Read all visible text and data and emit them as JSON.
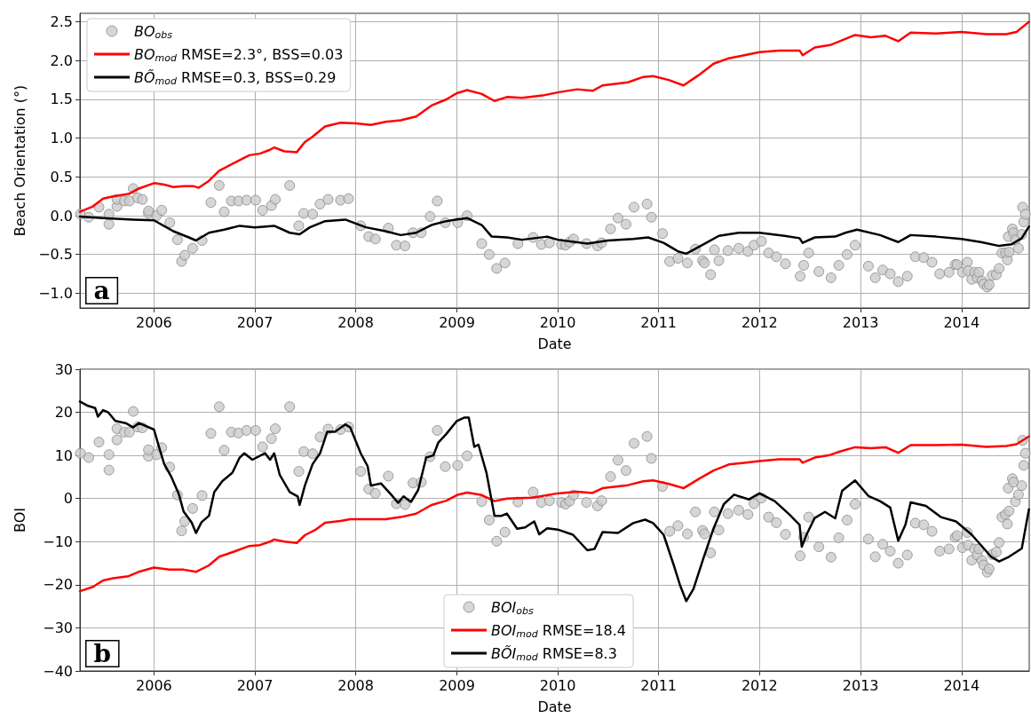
{
  "chart_data": [
    {
      "type": "line",
      "xlabel": "Date",
      "ylabel": "Beach Orientation (°)",
      "annotations": [
        "a"
      ],
      "grid": true,
      "legend": "top left",
      "xlim": [
        "2005-04-08",
        "2014-09-03"
      ],
      "xticks": [
        "2006",
        "2007",
        "2008",
        "2009",
        "2010",
        "2011",
        "2012",
        "2013",
        "2014"
      ],
      "ylim": [
        -1.19,
        2.61
      ],
      "yticks": [
        {
          "value": -1,
          "label": "−1.0"
        },
        {
          "value": -0.5,
          "label": "−0.5"
        },
        {
          "value": 0,
          "label": "0.0"
        },
        {
          "value": 0.5,
          "label": "0.5"
        },
        {
          "value": 1,
          "label": "1.0"
        },
        {
          "value": 1.5,
          "label": "1.5"
        },
        {
          "value": 2,
          "label": "2.0"
        },
        {
          "value": 2.5,
          "label": "2.5"
        }
      ],
      "series": [
        {
          "name": "BO$_{obs}$",
          "type": "scatter",
          "marker": "circle",
          "color": "#cccccc",
          "x": [
            "2005-04-10",
            "2005-05-10",
            "2005-06-16",
            "2005-07-22",
            "2005-07-22",
            "2005-08-20",
            "2005-08-20",
            "2005-09-16",
            "2005-10-04",
            "2005-10-18",
            "2005-11-03",
            "2005-11-20",
            "2005-12-12",
            "2005-12-12",
            "2006-01-11",
            "2006-01-29",
            "2006-02-27",
            "2006-03-27",
            "2006-04-11",
            "2006-04-22",
            "2006-05-21",
            "2006-06-24",
            "2006-07-26",
            "2006-08-25",
            "2006-09-12",
            "2006-10-08",
            "2006-11-03",
            "2006-12-02",
            "2007-01-04",
            "2007-01-29",
            "2007-03-02",
            "2007-03-16",
            "2007-05-07",
            "2007-06-09",
            "2007-06-27",
            "2007-07-29",
            "2007-08-25",
            "2007-09-23",
            "2007-11-07",
            "2007-12-06",
            "2008-01-19",
            "2008-02-17",
            "2008-03-12",
            "2008-04-28",
            "2008-05-27",
            "2008-06-27",
            "2008-07-26",
            "2008-08-25",
            "2008-09-26",
            "2008-10-22",
            "2008-11-20",
            "2009-01-04",
            "2009-02-07",
            "2009-04-01",
            "2009-04-28",
            "2009-05-25",
            "2009-06-24",
            "2009-08-10",
            "2009-10-04",
            "2009-11-03",
            "2009-12-02",
            "2010-01-15",
            "2010-01-29",
            "2010-02-13",
            "2010-02-27",
            "2010-04-15",
            "2010-05-25",
            "2010-06-09",
            "2010-07-11",
            "2010-08-07",
            "2010-09-05",
            "2010-10-04",
            "2010-11-20",
            "2010-12-06",
            "2011-01-15",
            "2011-02-10",
            "2011-03-12",
            "2011-04-15",
            "2011-05-14",
            "2011-06-09",
            "2011-06-16",
            "2011-07-08",
            "2011-07-22",
            "2011-08-07",
            "2011-09-09",
            "2011-10-18",
            "2011-11-20",
            "2011-12-12",
            "2012-01-08",
            "2012-02-03",
            "2012-03-02",
            "2012-04-04",
            "2012-05-27",
            "2012-06-09",
            "2012-06-27",
            "2012-08-03",
            "2012-09-16",
            "2012-10-14",
            "2012-11-13",
            "2012-12-12",
            "2013-01-29",
            "2013-02-23",
            "2013-03-22",
            "2013-04-18",
            "2013-05-17",
            "2013-06-19",
            "2013-07-18",
            "2013-08-17",
            "2013-09-16",
            "2013-10-14",
            "2013-11-17",
            "2013-12-09",
            "2013-12-16",
            "2014-01-04",
            "2014-01-22",
            "2014-01-25",
            "2014-02-07",
            "2014-02-17",
            "2014-02-27",
            "2014-03-05",
            "2014-03-16",
            "2014-03-22",
            "2014-04-04",
            "2014-04-11",
            "2014-04-22",
            "2014-05-07",
            "2014-05-17",
            "2014-05-27",
            "2014-06-09",
            "2014-06-16",
            "2014-06-22",
            "2014-06-19",
            "2014-07-04",
            "2014-07-08",
            "2014-07-15",
            "2014-07-26",
            "2014-08-07",
            "2014-08-14",
            "2014-08-10",
            "2014-08-20"
          ],
          "values": [
            0.02,
            -0.02,
            0.11,
            0.02,
            -0.11,
            0.12,
            0.21,
            0.19,
            0.19,
            0.35,
            0.23,
            0.21,
            0.03,
            0.06,
            0.0,
            0.07,
            -0.09,
            -0.31,
            -0.59,
            -0.51,
            -0.42,
            -0.32,
            0.17,
            0.39,
            0.05,
            0.19,
            0.19,
            0.2,
            0.2,
            0.07,
            0.13,
            0.21,
            0.39,
            -0.13,
            0.03,
            0.02,
            0.15,
            0.21,
            0.2,
            0.22,
            -0.13,
            -0.27,
            -0.3,
            -0.16,
            -0.38,
            -0.39,
            -0.22,
            -0.22,
            -0.01,
            0.19,
            -0.09,
            -0.09,
            0.0,
            -0.36,
            -0.5,
            -0.68,
            -0.61,
            -0.36,
            -0.28,
            -0.37,
            -0.35,
            -0.37,
            -0.38,
            -0.34,
            -0.3,
            -0.36,
            -0.39,
            -0.35,
            -0.17,
            -0.03,
            -0.11,
            0.11,
            0.15,
            -0.02,
            -0.23,
            -0.59,
            -0.55,
            -0.61,
            -0.43,
            -0.58,
            -0.61,
            -0.76,
            -0.44,
            -0.58,
            -0.45,
            -0.42,
            -0.46,
            -0.38,
            -0.33,
            -0.48,
            -0.53,
            -0.62,
            -0.78,
            -0.64,
            -0.48,
            -0.72,
            -0.8,
            -0.64,
            -0.5,
            -0.38,
            -0.65,
            -0.8,
            -0.7,
            -0.75,
            -0.85,
            -0.78,
            -0.53,
            -0.54,
            -0.6,
            -0.75,
            -0.73,
            -0.63,
            -0.63,
            -0.73,
            -0.6,
            -0.71,
            -0.82,
            -0.73,
            -0.8,
            -0.73,
            -0.84,
            -0.88,
            -0.92,
            -0.89,
            -0.77,
            -0.76,
            -0.68,
            -0.48,
            -0.48,
            -0.57,
            -0.47,
            -0.27,
            -0.17,
            -0.22,
            -0.31,
            -0.42,
            -0.24,
            -0.08,
            0.11,
            0.02
          ]
        },
        {
          "name": "BO$_{mod}$ RMSE=2.3°, BSS=0.03",
          "type": "line",
          "color": "#ff0000",
          "x": [
            "2005-04-08",
            "2005-05-25",
            "2005-07-01",
            "2005-08-07",
            "2005-10-01",
            "2005-11-07",
            "2006-01-01",
            "2006-02-07",
            "2006-03-12",
            "2006-04-18",
            "2006-05-25",
            "2006-06-12",
            "2006-07-19",
            "2006-08-25",
            "2006-10-18",
            "2006-12-12",
            "2007-01-19",
            "2007-02-25",
            "2007-03-12",
            "2007-04-18",
            "2007-06-02",
            "2007-07-01",
            "2007-07-29",
            "2007-09-12",
            "2007-11-07",
            "2008-01-01",
            "2008-02-25",
            "2008-04-18",
            "2008-06-12",
            "2008-08-07",
            "2008-10-01",
            "2008-11-24",
            "2009-01-01",
            "2009-02-07",
            "2009-04-01",
            "2009-05-17",
            "2009-07-01",
            "2009-08-25",
            "2009-11-07",
            "2010-01-01",
            "2010-03-12",
            "2010-05-07",
            "2010-06-12",
            "2010-09-12",
            "2010-11-07",
            "2010-12-12",
            "2011-02-07",
            "2011-04-01",
            "2011-05-25",
            "2011-07-19",
            "2011-09-12",
            "2011-11-07",
            "2012-01-01",
            "2012-03-12",
            "2012-05-25",
            "2012-06-05",
            "2012-07-19",
            "2012-09-12",
            "2012-10-18",
            "2012-12-12",
            "2013-02-07",
            "2013-04-01",
            "2013-05-17",
            "2013-07-01",
            "2013-10-01",
            "2014-01-01",
            "2014-04-01",
            "2014-06-12",
            "2014-07-19",
            "2014-09-02"
          ],
          "values": [
            0.05,
            0.12,
            0.22,
            0.25,
            0.28,
            0.35,
            0.42,
            0.4,
            0.37,
            0.38,
            0.38,
            0.36,
            0.45,
            0.58,
            0.68,
            0.78,
            0.8,
            0.85,
            0.88,
            0.83,
            0.82,
            0.95,
            1.02,
            1.15,
            1.2,
            1.19,
            1.17,
            1.21,
            1.23,
            1.28,
            1.42,
            1.5,
            1.58,
            1.62,
            1.57,
            1.48,
            1.53,
            1.52,
            1.55,
            1.59,
            1.63,
            1.61,
            1.68,
            1.72,
            1.79,
            1.8,
            1.75,
            1.68,
            1.81,
            1.96,
            2.03,
            2.07,
            2.11,
            2.13,
            2.13,
            2.07,
            2.17,
            2.2,
            2.25,
            2.33,
            2.3,
            2.32,
            2.25,
            2.36,
            2.35,
            2.37,
            2.34,
            2.34,
            2.37,
            2.5
          ]
        },
        {
          "name": "BÕ$_{mod}$ RMSE=0.3, BSS=0.29",
          "type": "line",
          "color": "#000000",
          "x": [
            "2005-04-08",
            "2005-07-01",
            "2005-10-18",
            "2006-01-01",
            "2006-03-12",
            "2006-05-07",
            "2006-06-02",
            "2006-07-19",
            "2006-09-12",
            "2006-11-07",
            "2007-01-01",
            "2007-03-12",
            "2007-05-07",
            "2007-06-12",
            "2007-07-19",
            "2007-09-12",
            "2007-11-24",
            "2008-02-07",
            "2008-04-18",
            "2008-06-12",
            "2008-08-07",
            "2008-10-01",
            "2008-11-24",
            "2009-02-07",
            "2009-04-01",
            "2009-05-07",
            "2009-07-01",
            "2009-08-25",
            "2009-11-24",
            "2010-01-01",
            "2010-04-18",
            "2010-07-01",
            "2010-10-01",
            "2010-11-24",
            "2011-01-19",
            "2011-03-12",
            "2011-04-11",
            "2011-06-12",
            "2011-08-07",
            "2011-10-18",
            "2012-01-01",
            "2012-04-01",
            "2012-05-25",
            "2012-06-05",
            "2012-07-19",
            "2012-10-01",
            "2012-11-07",
            "2012-12-19",
            "2013-03-12",
            "2013-05-17",
            "2013-07-01",
            "2013-10-01",
            "2014-01-01",
            "2014-03-12",
            "2014-05-17",
            "2014-07-01",
            "2014-08-07",
            "2014-09-02"
          ],
          "values": [
            -0.01,
            -0.03,
            -0.05,
            -0.06,
            -0.2,
            -0.28,
            -0.32,
            -0.22,
            -0.18,
            -0.13,
            -0.15,
            -0.13,
            -0.22,
            -0.24,
            -0.15,
            -0.07,
            -0.05,
            -0.15,
            -0.2,
            -0.25,
            -0.22,
            -0.12,
            -0.07,
            -0.03,
            -0.12,
            -0.27,
            -0.28,
            -0.31,
            -0.27,
            -0.31,
            -0.36,
            -0.32,
            -0.3,
            -0.28,
            -0.35,
            -0.46,
            -0.49,
            -0.37,
            -0.26,
            -0.22,
            -0.22,
            -0.26,
            -0.29,
            -0.35,
            -0.28,
            -0.27,
            -0.22,
            -0.18,
            -0.25,
            -0.34,
            -0.25,
            -0.27,
            -0.3,
            -0.34,
            -0.39,
            -0.37,
            -0.29,
            -0.14
          ]
        }
      ]
    },
    {
      "type": "line",
      "xlabel": "Date",
      "ylabel": "BOI",
      "annotations": [
        "b"
      ],
      "grid": true,
      "legend": "bottom",
      "xlim": [
        "2005-04-08",
        "2014-09-03"
      ],
      "xticks": [
        "2006",
        "2007",
        "2008",
        "2009",
        "2010",
        "2011",
        "2012",
        "2013",
        "2014"
      ],
      "ylim": [
        -40,
        30
      ],
      "yticks": [
        {
          "value": -40,
          "label": "−40"
        },
        {
          "value": -30,
          "label": "−30"
        },
        {
          "value": -20,
          "label": "−20"
        },
        {
          "value": -10,
          "label": "−10"
        },
        0,
        10,
        20,
        30
      ],
      "series": [
        {
          "name": "BOI$_{obs}$",
          "type": "scatter",
          "marker": "circle",
          "color": "#cccccc",
          "x": [
            "2005-04-10",
            "2005-05-10",
            "2005-06-16",
            "2005-07-22",
            "2005-07-22",
            "2005-08-20",
            "2005-08-20",
            "2005-09-16",
            "2005-10-04",
            "2005-10-18",
            "2005-11-03",
            "2005-11-20",
            "2005-12-12",
            "2005-12-12",
            "2006-01-11",
            "2006-01-29",
            "2006-02-27",
            "2006-03-27",
            "2006-04-11",
            "2006-04-22",
            "2006-05-21",
            "2006-06-24",
            "2006-07-26",
            "2006-08-25",
            "2006-09-12",
            "2006-10-08",
            "2006-11-03",
            "2006-12-02",
            "2007-01-04",
            "2007-01-29",
            "2007-03-02",
            "2007-03-16",
            "2007-05-07",
            "2007-06-09",
            "2007-06-27",
            "2007-07-29",
            "2007-08-25",
            "2007-09-23",
            "2007-11-07",
            "2007-12-06",
            "2008-01-19",
            "2008-02-17",
            "2008-03-12",
            "2008-04-28",
            "2008-05-27",
            "2008-06-27",
            "2008-07-26",
            "2008-08-25",
            "2008-09-26",
            "2008-10-22",
            "2008-11-20",
            "2009-01-04",
            "2009-02-07",
            "2009-04-01",
            "2009-04-28",
            "2009-05-25",
            "2009-06-24",
            "2009-08-10",
            "2009-10-04",
            "2009-11-03",
            "2009-12-02",
            "2010-01-15",
            "2010-01-29",
            "2010-02-13",
            "2010-02-27",
            "2010-04-15",
            "2010-05-25",
            "2010-06-09",
            "2010-07-11",
            "2010-08-07",
            "2010-09-05",
            "2010-10-04",
            "2010-11-20",
            "2010-12-06",
            "2011-01-15",
            "2011-02-10",
            "2011-03-12",
            "2011-04-15",
            "2011-05-14",
            "2011-06-09",
            "2011-06-16",
            "2011-07-08",
            "2011-07-22",
            "2011-08-07",
            "2011-09-09",
            "2011-10-18",
            "2011-11-20",
            "2011-12-12",
            "2012-01-08",
            "2012-02-03",
            "2012-03-02",
            "2012-04-04",
            "2012-05-27",
            "2012-06-09",
            "2012-06-27",
            "2012-08-03",
            "2012-09-16",
            "2012-10-14",
            "2012-11-13",
            "2012-12-12",
            "2013-01-29",
            "2013-02-23",
            "2013-03-22",
            "2013-04-18",
            "2013-05-17",
            "2013-06-19",
            "2013-07-18",
            "2013-08-17",
            "2013-09-16",
            "2013-10-14",
            "2013-11-17",
            "2013-12-09",
            "2013-12-16",
            "2014-01-04",
            "2014-01-22",
            "2014-01-25",
            "2014-02-07",
            "2014-02-17",
            "2014-02-27",
            "2014-03-05",
            "2014-03-16",
            "2014-03-22",
            "2014-04-04",
            "2014-04-11",
            "2014-04-22",
            "2014-05-07",
            "2014-05-17",
            "2014-05-27",
            "2014-06-09",
            "2014-06-16",
            "2014-06-22",
            "2014-06-19",
            "2014-07-04",
            "2014-07-08",
            "2014-07-15",
            "2014-07-26",
            "2014-08-07",
            "2014-08-14",
            "2014-08-10",
            "2014-08-20"
          ],
          "values": [
            10.5,
            9.5,
            13.1,
            10.2,
            6.6,
            13.6,
            16.2,
            15.4,
            15.4,
            20.2,
            16.6,
            16.4,
            9.8,
            11.3,
            10.2,
            11.8,
            7.3,
            0.8,
            -7.5,
            -5.3,
            -2.3,
            0.7,
            15.1,
            21.3,
            11.2,
            15.4,
            15.2,
            15.8,
            15.8,
            12.0,
            13.9,
            16.2,
            21.3,
            6.3,
            10.9,
            10.4,
            14.3,
            16.1,
            16.0,
            16.6,
            6.3,
            2.2,
            1.2,
            5.2,
            -1.2,
            -1.4,
            3.6,
            3.8,
            9.7,
            15.8,
            7.4,
            7.7,
            9.9,
            -0.7,
            -5.0,
            -9.9,
            -7.8,
            -0.8,
            1.5,
            -0.9,
            -0.5,
            -0.9,
            -1.3,
            -0.6,
            0.8,
            -0.9,
            -1.7,
            -0.5,
            5.1,
            8.9,
            6.5,
            12.8,
            14.4,
            9.3,
            2.8,
            -7.6,
            -6.3,
            -8.2,
            -3.1,
            -7.4,
            -8.2,
            -12.6,
            -3.1,
            -7.3,
            -3.5,
            -2.7,
            -3.7,
            -1.2,
            0.1,
            -4.3,
            -5.6,
            -8.3,
            -13.3,
            -9.0,
            -4.3,
            -11.2,
            -13.6,
            -9.1,
            -5.0,
            -1.3,
            -9.4,
            -13.5,
            -10.6,
            -12.2,
            -15.0,
            -13.1,
            -5.7,
            -6.1,
            -7.6,
            -12.2,
            -11.7,
            -9.0,
            -8.6,
            -11.4,
            -7.9,
            -10.8,
            -14.3,
            -11.7,
            -13.1,
            -11.7,
            -14.4,
            -15.4,
            -17.1,
            -16.3,
            -13.0,
            -12.4,
            -10.2,
            -4.3,
            -3.7,
            -5.9,
            -2.9,
            2.4,
            4.6,
            3.8,
            -0.7,
            0.9,
            3.0,
            7.7,
            13.5,
            10.5
          ]
        },
        {
          "name": "BOI$_{mod}$ RMSE=18.4",
          "type": "line",
          "color": "#ff0000",
          "x": [
            "2005-04-08",
            "2005-05-25",
            "2005-07-01",
            "2005-08-07",
            "2005-10-01",
            "2005-11-07",
            "2006-01-01",
            "2006-02-25",
            "2006-04-18",
            "2006-06-02",
            "2006-07-19",
            "2006-08-25",
            "2006-10-18",
            "2006-12-12",
            "2007-01-19",
            "2007-02-25",
            "2007-03-12",
            "2007-04-18",
            "2007-06-02",
            "2007-07-01",
            "2007-08-07",
            "2007-09-12",
            "2007-11-07",
            "2007-12-12",
            "2008-02-25",
            "2008-04-18",
            "2008-06-12",
            "2008-08-07",
            "2008-10-01",
            "2008-11-24",
            "2009-01-01",
            "2009-02-07",
            "2009-04-01",
            "2009-05-17",
            "2009-07-01",
            "2009-10-01",
            "2010-01-01",
            "2010-03-12",
            "2010-05-07",
            "2010-06-12",
            "2010-09-12",
            "2010-11-07",
            "2010-12-12",
            "2011-02-07",
            "2011-04-01",
            "2011-05-25",
            "2011-07-19",
            "2011-09-12",
            "2011-11-07",
            "2012-01-01",
            "2012-03-12",
            "2012-05-25",
            "2012-06-05",
            "2012-07-19",
            "2012-09-12",
            "2012-10-18",
            "2012-12-12",
            "2013-02-07",
            "2013-04-01",
            "2013-05-17",
            "2013-07-01",
            "2013-10-01",
            "2014-01-01",
            "2014-04-01",
            "2014-06-12",
            "2014-07-19",
            "2014-09-02"
          ],
          "values": [
            -21.5,
            -20.5,
            -19.0,
            -18.5,
            -18.0,
            -17.0,
            -16.0,
            -16.5,
            -16.5,
            -17.0,
            -15.5,
            -13.5,
            -12.3,
            -11.0,
            -10.8,
            -10.0,
            -9.5,
            -10.0,
            -10.3,
            -8.5,
            -7.3,
            -5.6,
            -5.2,
            -4.8,
            -4.8,
            -4.8,
            -4.3,
            -3.5,
            -1.5,
            -0.5,
            0.8,
            1.4,
            0.8,
            -0.6,
            0.0,
            0.2,
            1.2,
            1.6,
            1.3,
            2.4,
            3.1,
            4.0,
            4.2,
            3.4,
            2.4,
            4.5,
            6.5,
            7.9,
            8.3,
            8.7,
            9.1,
            9.1,
            8.3,
            9.5,
            10.1,
            10.9,
            11.9,
            11.7,
            11.9,
            10.6,
            12.4,
            12.4,
            12.5,
            12.0,
            12.2,
            12.6,
            14.4
          ]
        },
        {
          "name": "BÕI$_{mod}$ RMSE=8.3",
          "type": "line",
          "color": "#000000",
          "x": [
            "2005-04-08",
            "2005-05-07",
            "2005-06-02",
            "2005-06-12",
            "2005-07-01",
            "2005-07-19",
            "2005-08-14",
            "2005-09-20",
            "2005-10-18",
            "2005-11-07",
            "2006-01-01",
            "2006-01-19",
            "2006-02-07",
            "2006-03-05",
            "2006-04-01",
            "2006-04-18",
            "2006-05-17",
            "2006-06-02",
            "2006-06-22",
            "2006-07-19",
            "2006-08-07",
            "2006-09-05",
            "2006-10-12",
            "2006-11-07",
            "2006-11-24",
            "2006-12-23",
            "2007-02-07",
            "2007-02-25",
            "2007-03-12",
            "2007-04-01",
            "2007-05-07",
            "2007-06-05",
            "2007-06-12",
            "2007-07-01",
            "2007-07-29",
            "2007-08-25",
            "2007-09-20",
            "2007-10-18",
            "2007-11-24",
            "2007-12-12",
            "2008-01-19",
            "2008-02-13",
            "2008-02-25",
            "2008-04-01",
            "2008-05-07",
            "2008-06-02",
            "2008-06-22",
            "2008-07-19",
            "2008-08-14",
            "2008-09-12",
            "2008-10-08",
            "2008-10-26",
            "2008-11-24",
            "2009-01-01",
            "2009-01-29",
            "2009-02-13",
            "2009-03-05",
            "2009-03-20",
            "2009-04-18",
            "2009-05-17",
            "2009-06-12",
            "2009-07-01",
            "2009-08-07",
            "2009-09-05",
            "2009-10-08",
            "2009-10-26",
            "2009-11-24",
            "2010-01-01",
            "2010-02-25",
            "2010-04-18",
            "2010-05-14",
            "2010-06-12",
            "2010-08-07",
            "2010-10-01",
            "2010-11-13",
            "2010-12-12",
            "2011-01-19",
            "2011-02-25",
            "2011-03-20",
            "2011-04-11",
            "2011-05-07",
            "2011-06-12",
            "2011-07-19",
            "2011-08-25",
            "2011-10-01",
            "2011-11-24",
            "2012-01-01",
            "2012-02-25",
            "2012-04-18",
            "2012-05-25",
            "2012-06-02",
            "2012-06-19",
            "2012-07-19",
            "2012-08-25",
            "2012-10-01",
            "2012-10-26",
            "2012-12-12",
            "2013-01-29",
            "2013-03-12",
            "2013-04-18",
            "2013-05-17",
            "2013-06-12",
            "2013-07-01",
            "2013-08-25",
            "2013-10-18",
            "2013-12-12",
            "2014-02-07",
            "2014-04-18",
            "2014-05-17",
            "2014-06-22",
            "2014-08-07",
            "2014-09-02"
          ],
          "values": [
            22.5,
            21.5,
            21.0,
            19.0,
            20.5,
            20.0,
            18.0,
            17.5,
            16.5,
            17.5,
            16.0,
            12.0,
            8.0,
            5.0,
            1.0,
            -3.0,
            -5.5,
            -8.0,
            -5.5,
            -4.0,
            1.5,
            4.0,
            6.0,
            9.5,
            10.5,
            9.0,
            10.5,
            9.0,
            10.5,
            5.5,
            1.5,
            0.5,
            -1.5,
            3.0,
            8.0,
            10.5,
            15.5,
            15.5,
            17.2,
            16.5,
            10.5,
            7.5,
            3.0,
            3.5,
            1.0,
            -1.0,
            0.5,
            -0.8,
            2.0,
            9.5,
            10.0,
            13.0,
            15.0,
            18.0,
            18.8,
            18.8,
            12.0,
            12.5,
            6.0,
            -4.0,
            -4.0,
            -3.5,
            -7.0,
            -6.7,
            -5.3,
            -8.3,
            -6.9,
            -7.2,
            -8.4,
            -12.0,
            -11.7,
            -7.8,
            -8.0,
            -5.7,
            -4.9,
            -5.7,
            -8.4,
            -15.5,
            -20.2,
            -23.8,
            -21.0,
            -13.9,
            -6.9,
            -1.3,
            0.9,
            -0.2,
            1.2,
            -0.6,
            -3.7,
            -6.1,
            -11.2,
            -8.4,
            -4.5,
            -3.1,
            -4.6,
            1.8,
            4.2,
            0.6,
            -0.6,
            -2.1,
            -9.8,
            -6.1,
            -0.9,
            -1.7,
            -4.3,
            -5.3,
            -8.4,
            -13.5,
            -14.6,
            -13.5,
            -11.6,
            -2.5
          ]
        }
      ]
    }
  ]
}
